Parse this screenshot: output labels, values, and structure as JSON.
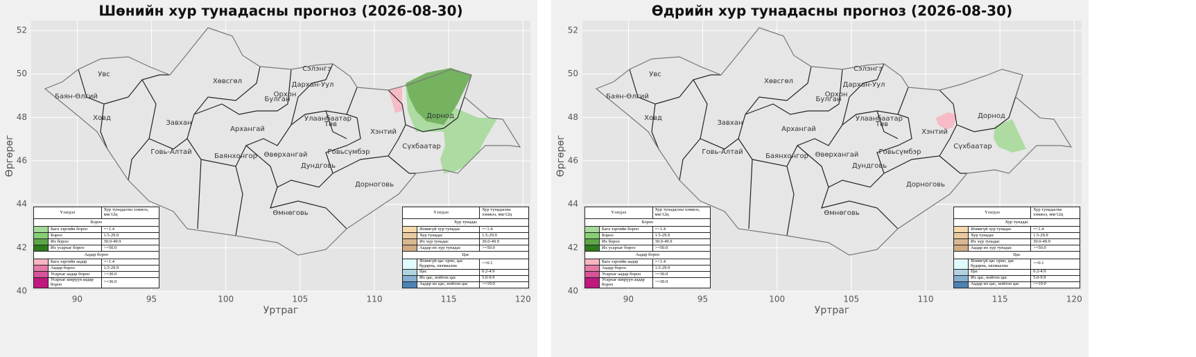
{
  "panels": [
    {
      "title": "Шөнийн хур тунадасны прогноз (2026-08-30)"
    },
    {
      "title": "Өдрийн хур тунадасны прогноз (2026-08-30)"
    }
  ],
  "axes": {
    "xlabel": "Уртраг",
    "ylabel": "Өргөрөг",
    "xlim": [
      86.9,
      120.5
    ],
    "ylim": [
      40,
      52.45
    ],
    "xticks": [
      90,
      95,
      100,
      105,
      110,
      115,
      120
    ],
    "yticks": [
      40,
      42,
      44,
      46,
      48,
      50,
      52
    ],
    "grid": true
  },
  "provinces": [
    "Увс",
    "Баян-Өлгий",
    "Ховд",
    "Хөвсгөл",
    "Завхан",
    "Говь-Алтай",
    "Архангай",
    "Булган",
    "Орхон",
    "Сэлэнгэ",
    "Дархан-Уул",
    "Улаанбаатар",
    "Төв",
    "Баянхонгор",
    "Өвөрхангай",
    "Дундговь",
    "Говьсүмбэр",
    "Хэнтий",
    "Дорнод",
    "Сүхбаатар",
    "Дорноговь",
    "Өмнөговь"
  ],
  "legend_header": [
    "Үзэгдэл",
    "Хур тунадасны хэмжээ, мм/12ц"
  ],
  "legends": [
    {
      "sections": [
        {
          "title": "Бороо",
          "items": [
            {
              "name": "Бага зэргийн бороо",
              "range": "=<1.4",
              "color": "#a6d99a"
            },
            {
              "name": "Бороо",
              "range": "1.5-29.9",
              "color": "#86d073"
            },
            {
              "name": "Их бороо",
              "range": "30.0-49.9",
              "color": "#5ea64a"
            },
            {
              "name": "Их усархаг бороо",
              "range": ">=50.0",
              "color": "#2e7a1e"
            }
          ]
        },
        {
          "title": "Аадар бороо",
          "items": [
            {
              "name": "Бага зэргийн аадар",
              "range": "=<1.4",
              "color": "#f7b6c2"
            },
            {
              "name": "Аадар бороо",
              "range": "1.5-29.9",
              "color": "#e67aa7"
            },
            {
              "name": "Усархаг аадар бороо",
              "range": ">=30.0",
              "color": "#d6549a"
            },
            {
              "name": "Усархаг ширүүн аадар бороо",
              "range": ">=30.0",
              "color": "#c0187e"
            }
          ]
        }
      ]
    },
    {
      "sections": [
        {
          "title": "Хур тунадас",
          "items": [
            {
              "name": "Ялимгүй хур тунадас",
              "range": "=<1.4",
              "color": "#f5d9ad"
            },
            {
              "name": "Хур тунадас",
              "range": "1.5-29.9",
              "color": "#e8c9a0"
            },
            {
              "name": "Их хур тунадас",
              "range": "30.0-49.9",
              "color": "#d9b891"
            },
            {
              "name": "Аадар их хур тунадас",
              "range": ">=50.0",
              "color": "#cfab85"
            }
          ]
        },
        {
          "title": "Цас",
          "items": [
            {
              "name": "Ялимгүй цас орно, цас бударна, хялмаална",
              "range": "<=0.1",
              "color": "#e0fbfb"
            },
            {
              "name": "Цас",
              "range": "0.2-4.9",
              "color": "#b0d3e0"
            },
            {
              "name": "Их цас, нойтон цас",
              "range": "5.0-9.9",
              "color": "#86afd0"
            },
            {
              "name": "Аадар их цас, нойтон цас",
              "range": ">=10.0",
              "color": "#4d83b4"
            }
          ]
        }
      ]
    }
  ]
}
